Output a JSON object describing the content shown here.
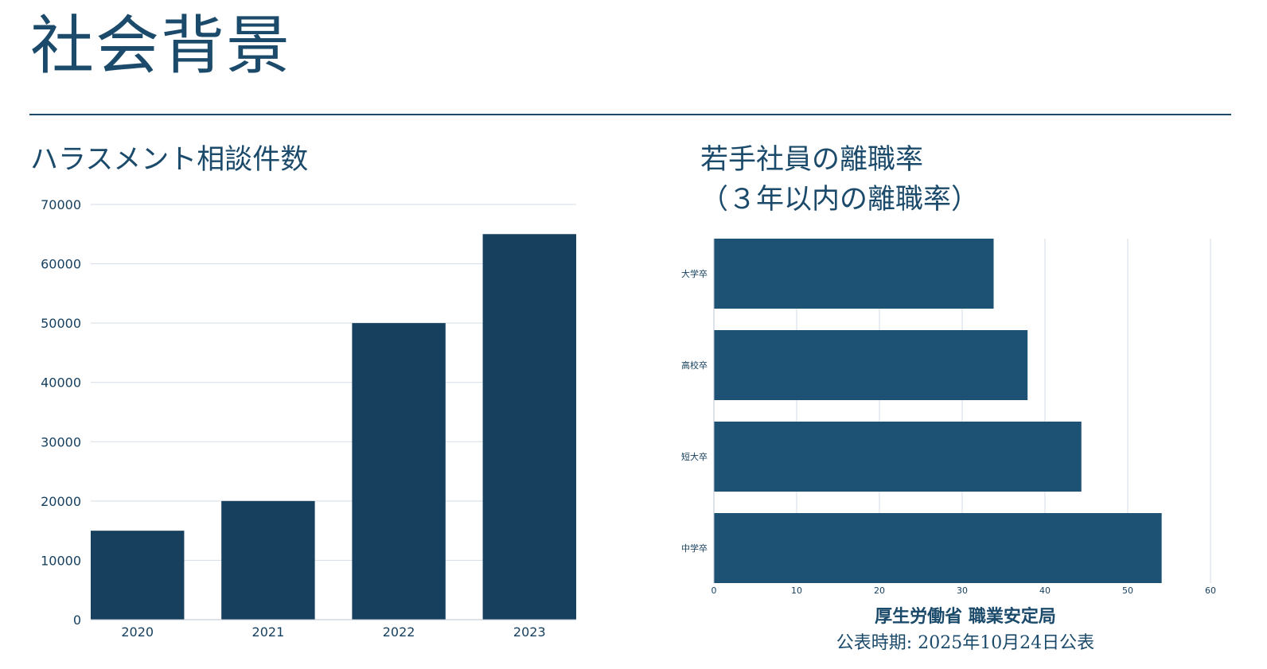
{
  "page": {
    "title": "社会背景"
  },
  "charts": {
    "left_title": "ハラスメント相談件数",
    "right_title_line1": "若手社員の離職率",
    "right_title_line2": "（３年以内の離職率）"
  },
  "source": {
    "line1": "厚生労働省 職業安定局",
    "line2": "公表時期: 2025年10月24日公表"
  },
  "chart_data": [
    {
      "type": "bar",
      "title": "ハラスメント相談件数",
      "categories": [
        "2020",
        "2021",
        "2022",
        "2023"
      ],
      "values": [
        15000,
        20000,
        50000,
        65000
      ],
      "ylim": [
        0,
        70000
      ],
      "yticks": [
        0,
        10000,
        20000,
        30000,
        40000,
        50000,
        60000,
        70000
      ],
      "grid": true,
      "color": "#17405f"
    },
    {
      "type": "bar",
      "orientation": "horizontal",
      "title": "若手社員の離職率（３年以内の離職率）",
      "categories": [
        "大学卒",
        "高校卒",
        "短大卒",
        "中学卒"
      ],
      "values": [
        33.8,
        37.9,
        44.4,
        54.1
      ],
      "xlim": [
        0,
        60
      ],
      "xticks": [
        0,
        10,
        20,
        30,
        40,
        50,
        60
      ],
      "grid": true,
      "color": "#1d5275"
    }
  ]
}
